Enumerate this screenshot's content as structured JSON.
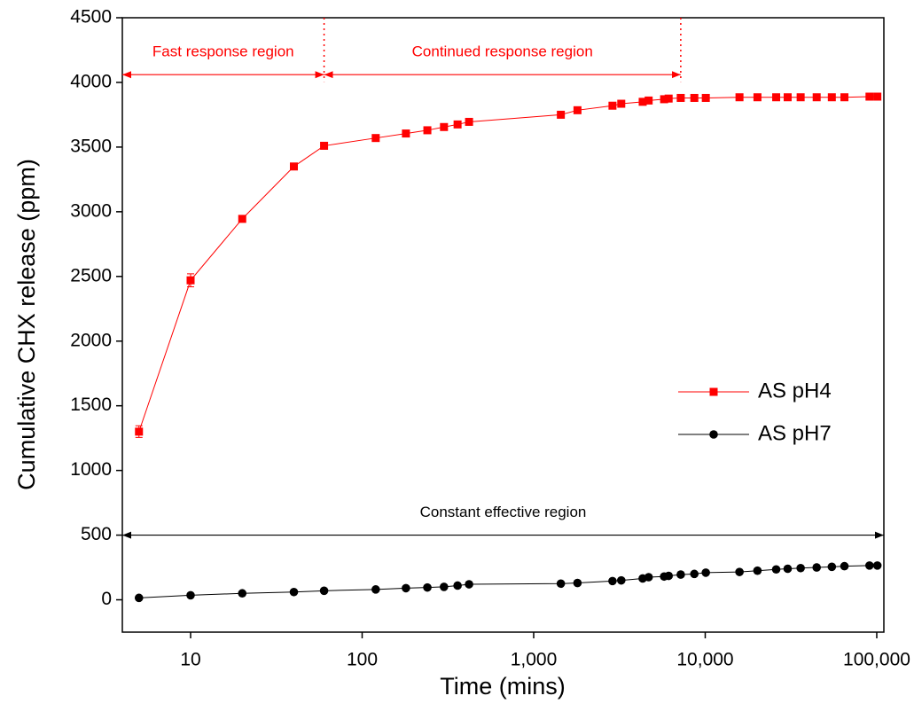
{
  "chart_data": {
    "type": "line",
    "x_label": "Time (mins)",
    "y_label": "Cumulative CHX release (ppm)",
    "x_log": true,
    "xlim": [
      4,
      110000
    ],
    "xticks": [
      10,
      100,
      {
        "value": 1000,
        "label": "1,000"
      },
      {
        "value": 10000,
        "label": "10,000"
      },
      {
        "value": 100000,
        "label": "100,000"
      }
    ],
    "ylim": [
      -250,
      4500
    ],
    "yticks": [
      0,
      500,
      1000,
      1500,
      2000,
      2500,
      3000,
      3500,
      4000,
      4500
    ],
    "legend": "right",
    "series": [
      {
        "name": "AS pH4",
        "color": "#ff0000",
        "marker": "square",
        "x": [
          5,
          10,
          20,
          40,
          60,
          120,
          180,
          240,
          300,
          360,
          420,
          1440,
          1800,
          2880,
          3240,
          4320,
          4680,
          5760,
          6120,
          7200,
          8640,
          10080,
          15840,
          20160,
          25920,
          30240,
          36000,
          44640,
          54720,
          64800,
          90720,
          100800
        ],
        "values": [
          1300,
          2470,
          2945,
          3350,
          3510,
          3570,
          3605,
          3630,
          3655,
          3675,
          3695,
          3750,
          3785,
          3820,
          3835,
          3850,
          3860,
          3870,
          3875,
          3880,
          3880,
          3880,
          3885,
          3885,
          3885,
          3885,
          3885,
          3885,
          3885,
          3885,
          3890,
          3890
        ],
        "errors": [
          45,
          50,
          20,
          15,
          15,
          10,
          10,
          10,
          10,
          10,
          10,
          10,
          10,
          10,
          10,
          10,
          10,
          10,
          10,
          10,
          10,
          10,
          10,
          10,
          10,
          10,
          10,
          10,
          10,
          10,
          10,
          10
        ]
      },
      {
        "name": "AS pH7",
        "color": "#000000",
        "marker": "circle",
        "x": [
          5,
          10,
          20,
          40,
          60,
          120,
          180,
          240,
          300,
          360,
          420,
          1440,
          1800,
          2880,
          3240,
          4320,
          4680,
          5760,
          6120,
          7200,
          8640,
          10080,
          15840,
          20160,
          25920,
          30240,
          36000,
          44640,
          54720,
          64800,
          90720,
          100800
        ],
        "values": [
          15,
          35,
          50,
          60,
          70,
          80,
          90,
          95,
          100,
          110,
          120,
          125,
          130,
          145,
          150,
          165,
          175,
          180,
          185,
          195,
          200,
          210,
          215,
          225,
          235,
          240,
          245,
          250,
          255,
          260,
          265,
          265
        ]
      }
    ],
    "annotations": [
      {
        "text": "Fast response region",
        "x": [
          4,
          60
        ],
        "y": 4060,
        "color": "#ff0000"
      },
      {
        "text": "Continued response region",
        "x": [
          60,
          7200
        ],
        "y": 4060,
        "color": "#ff0000"
      },
      {
        "text": "Constant effective region",
        "x": [
          4,
          110000
        ],
        "y": 500,
        "color": "#000000"
      }
    ],
    "dotted_lines": {
      "x": [
        60,
        7200
      ],
      "color": "#ff0000"
    }
  }
}
